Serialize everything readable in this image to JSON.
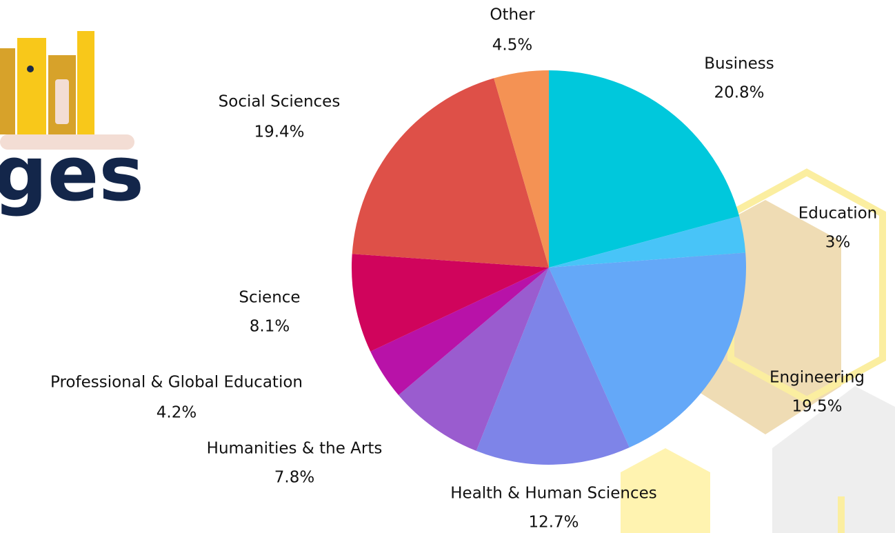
{
  "chart_data": {
    "type": "pie",
    "categories": [
      "Business",
      "Education",
      "Engineering",
      "Health & Human Sciences",
      "Humanities & the Arts",
      "Professional & Global Education",
      "Science",
      "Social Sciences",
      "Other"
    ],
    "values": [
      20.8,
      3,
      19.5,
      12.7,
      7.8,
      4.2,
      8.1,
      19.4,
      4.5
    ],
    "value_labels": [
      "20.8%",
      "3%",
      "19.5%",
      "12.7%",
      "7.8%",
      "4.2%",
      "8.1%",
      "19.4%",
      "4.5%"
    ],
    "colors": [
      "#00c8dc",
      "#48c4f8",
      "#64a8f8",
      "#7e84e8",
      "#9a5ccf",
      "#b812a8",
      "#d0045c",
      "#de5048",
      "#f49254"
    ]
  }
}
